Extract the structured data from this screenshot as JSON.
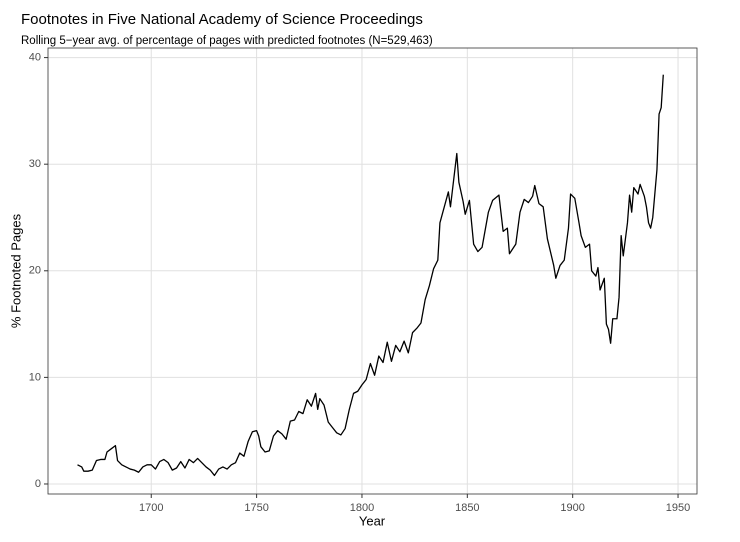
{
  "chart_data": {
    "type": "line",
    "title": "Footnotes in Five National Academy of Science Proceedings",
    "subtitle": "Rolling 5−year avg. of percentage of pages with predicted footnotes (N=529,463)",
    "x_label": "Year",
    "y_label": "% Footnoted Pages",
    "xlim": [
      1651,
      1959
    ],
    "ylim": [
      -0.94,
      40.9
    ],
    "xticks": [
      1700,
      1750,
      1800,
      1850,
      1900,
      1950
    ],
    "yticks": [
      0,
      10,
      20,
      30,
      40
    ],
    "grid": true,
    "series": [
      {
        "color": "#000000",
        "x": [
          1665,
          1667,
          1668,
          1670,
          1672,
          1674,
          1676,
          1678,
          1679,
          1681,
          1683,
          1684,
          1686,
          1688,
          1690,
          1692,
          1694,
          1696,
          1698,
          1700,
          1702,
          1704,
          1706,
          1708,
          1710,
          1712,
          1714,
          1716,
          1718,
          1720,
          1722,
          1724,
          1726,
          1728,
          1730,
          1732,
          1734,
          1736,
          1738,
          1740,
          1742,
          1744,
          1746,
          1748,
          1750,
          1751,
          1752,
          1754,
          1756,
          1758,
          1760,
          1762,
          1764,
          1766,
          1768,
          1770,
          1772,
          1774,
          1776,
          1778,
          1779,
          1780,
          1782,
          1784,
          1786,
          1788,
          1790,
          1792,
          1794,
          1796,
          1798,
          1800,
          1802,
          1804,
          1806,
          1808,
          1810,
          1812,
          1814,
          1816,
          1818,
          1820,
          1822,
          1824,
          1826,
          1828,
          1830,
          1832,
          1834,
          1836,
          1837,
          1841,
          1842,
          1845,
          1846,
          1848,
          1849,
          1851,
          1853,
          1855,
          1857,
          1860,
          1862,
          1865,
          1867,
          1869,
          1870,
          1873,
          1875,
          1877,
          1879,
          1881,
          1882,
          1884,
          1886,
          1888,
          1891,
          1892,
          1894,
          1896,
          1898,
          1899,
          1901,
          1903,
          1904,
          1906,
          1908,
          1909,
          1911,
          1912,
          1913,
          1915,
          1916,
          1917,
          1918,
          1919,
          1921,
          1922,
          1923,
          1924,
          1926,
          1927,
          1928,
          1929,
          1931,
          1932,
          1934,
          1935,
          1936,
          1937,
          1938,
          1940,
          1941,
          1942,
          1943
        ],
        "values": [
          1.8,
          1.6,
          1.2,
          1.2,
          1.3,
          2.2,
          2.3,
          2.3,
          3.0,
          3.3,
          3.6,
          2.2,
          1.8,
          1.6,
          1.4,
          1.3,
          1.1,
          1.6,
          1.8,
          1.8,
          1.4,
          2.1,
          2.3,
          2.0,
          1.3,
          1.5,
          2.1,
          1.5,
          2.3,
          2.0,
          2.4,
          2.0,
          1.6,
          1.3,
          0.8,
          1.4,
          1.6,
          1.4,
          1.8,
          2.0,
          2.9,
          2.6,
          4.0,
          4.9,
          5.0,
          4.5,
          3.5,
          3.0,
          3.1,
          4.5,
          5.0,
          4.7,
          4.2,
          5.9,
          6.0,
          6.8,
          6.6,
          7.9,
          7.3,
          8.5,
          7.0,
          8.0,
          7.4,
          5.8,
          5.3,
          4.8,
          4.6,
          5.2,
          7.0,
          8.5,
          8.7,
          9.3,
          9.8,
          11.3,
          10.2,
          12.0,
          11.4,
          13.3,
          11.5,
          13.0,
          12.4,
          13.4,
          12.3,
          14.2,
          14.6,
          15.1,
          17.3,
          18.6,
          20.2,
          21.0,
          24.5,
          27.4,
          26.0,
          31.0,
          28.3,
          26.5,
          25.3,
          26.6,
          22.5,
          21.8,
          22.2,
          25.5,
          26.6,
          27.1,
          23.7,
          24.0,
          21.6,
          22.5,
          25.5,
          26.7,
          26.4,
          27.0,
          28.0,
          26.3,
          26.0,
          23.0,
          20.5,
          19.3,
          20.5,
          21.0,
          24.0,
          27.2,
          26.8,
          24.5,
          23.3,
          22.2,
          22.5,
          20.0,
          19.5,
          20.3,
          18.2,
          19.3,
          15.0,
          14.5,
          13.2,
          15.5,
          15.5,
          17.5,
          23.3,
          21.4,
          24.5,
          27.1,
          25.5,
          27.8,
          27.2,
          28.1,
          27.0,
          26.0,
          24.5,
          24.0,
          25.0,
          29.5,
          34.7,
          35.3,
          38.4
        ]
      }
    ]
  }
}
